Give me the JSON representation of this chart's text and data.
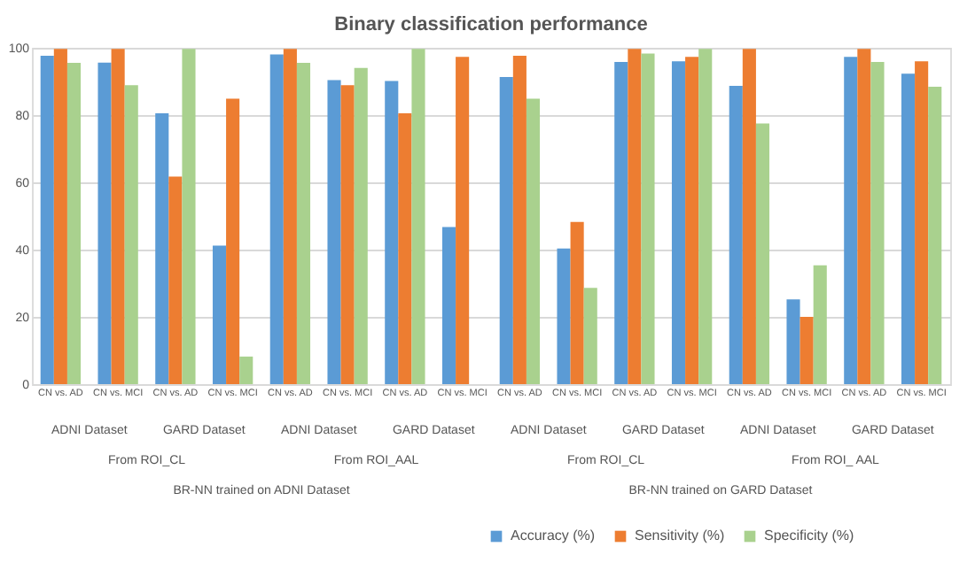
{
  "chart_data": {
    "type": "bar",
    "title": "Binary classification performance",
    "categories": [
      "CN vs. AD",
      "CN vs. MCI",
      "CN vs. AD",
      "CN vs. MCI",
      "CN vs. AD",
      "CN vs. MCI",
      "CN vs. AD",
      "CN vs. MCI",
      "CN vs. AD",
      "CN vs. MCI",
      "CN vs. AD",
      "CN vs. MCI",
      "CN vs. AD",
      "CN vs. MCI",
      "CN vs. AD",
      "CN vs. MCI"
    ],
    "series": [
      {
        "name": "Accuracy (%)",
        "color": "#5b9bd5",
        "values": [
          97.6,
          95.6,
          80.5,
          41.2,
          98.0,
          90.4,
          90.1,
          46.7,
          91.3,
          40.3,
          95.8,
          96.0,
          88.7,
          25.2,
          97.3,
          92.3
        ]
      },
      {
        "name": "Sensitivity (%)",
        "color": "#ed7d31",
        "values": [
          99.7,
          99.7,
          61.7,
          84.9,
          99.7,
          88.9,
          80.5,
          97.3,
          97.6,
          48.2,
          99.7,
          97.3,
          99.7,
          20.0,
          99.7,
          96.0
        ]
      },
      {
        "name": "Specificity (%)",
        "color": "#a9d18e",
        "values": [
          95.5,
          88.9,
          99.7,
          8.2,
          95.5,
          94.0,
          99.7,
          0,
          84.9,
          28.6,
          98.3,
          99.7,
          77.5,
          35.3,
          95.8,
          88.4
        ]
      }
    ],
    "ylim": [
      0,
      100
    ],
    "yticks": [
      0,
      20,
      40,
      60,
      80,
      100
    ],
    "grid": "y",
    "legend": "bottom",
    "annotations": [
      "ADNI Dataset",
      "GARD Dataset",
      "ADNI Dataset",
      "GARD Dataset",
      "ADNI Dataset",
      "GARD Dataset",
      "ADNI Dataset",
      "GARD Dataset",
      "From ROI_CL",
      "From ROI_AAL",
      "From ROI_CL",
      "From ROI_ AAL",
      "BR-NN trained on ADNI Dataset",
      "BR-NN trained on GARD Dataset"
    ]
  }
}
